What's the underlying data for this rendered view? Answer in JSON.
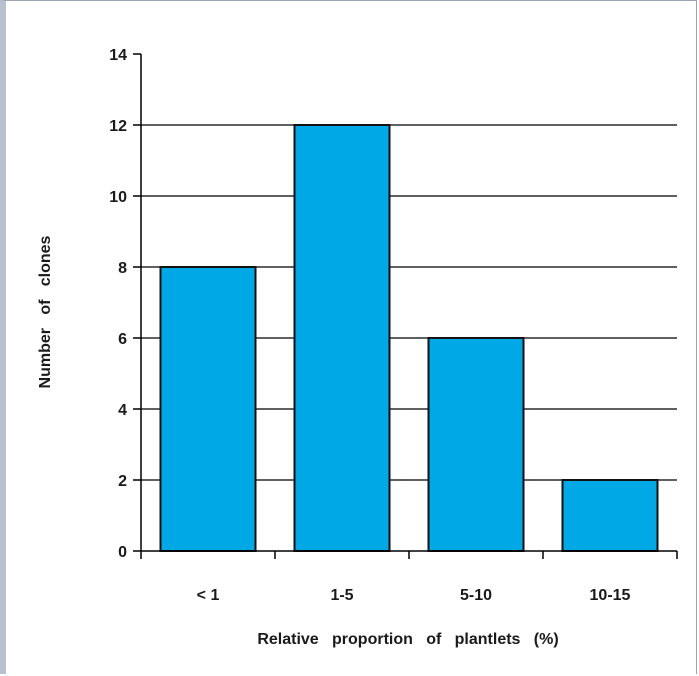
{
  "chart_data": {
    "type": "bar",
    "title": "",
    "xlabel": "Relative   proportion   of   plantlets   (%)",
    "ylabel": "Number   of   clones",
    "categories": [
      "< 1",
      "1-5",
      "5-10",
      "10-15"
    ],
    "values": [
      8,
      12,
      6,
      2
    ],
    "ylim": [
      0,
      14
    ],
    "yticks": [
      "0",
      "2",
      "4",
      "6",
      "8",
      "10",
      "12",
      "14"
    ],
    "grid": true,
    "legend": "none",
    "colors": {
      "bar": "#00a8e6",
      "bar_stroke": "#111111",
      "grid": "#000000"
    }
  }
}
